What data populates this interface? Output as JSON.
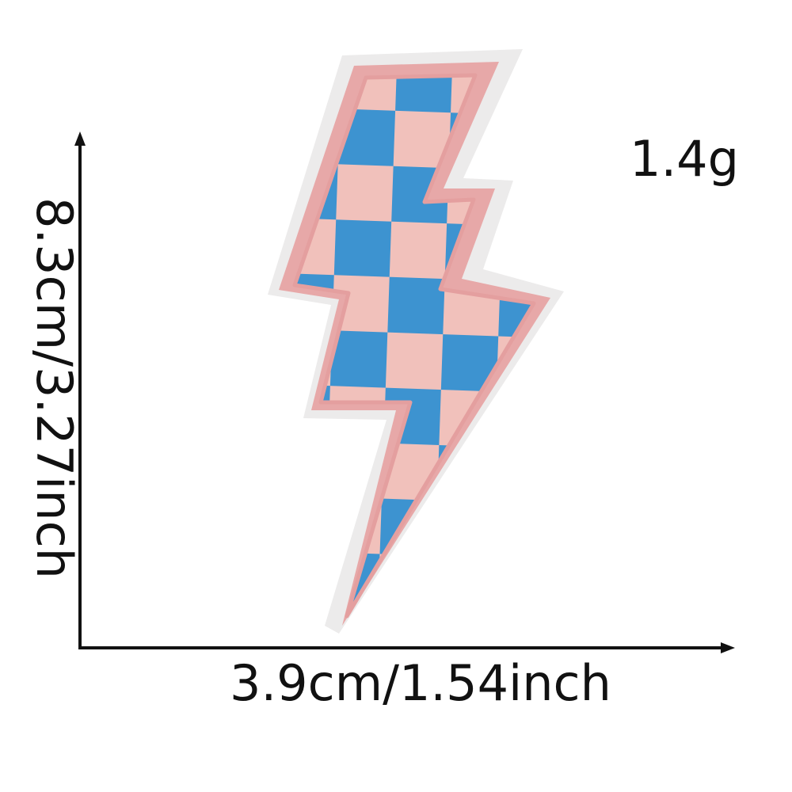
{
  "product": {
    "weight": "1.4g",
    "width": "3.9cm/1.54inch",
    "height": "8.3cm/3.27inch"
  },
  "patch": {
    "name": "lightning-bolt-patch",
    "colors": {
      "backing": "#ecebeb",
      "border": "#e7a8a8",
      "checker_pink": "#f1c1bb",
      "checker_blue": "#3d93d0"
    }
  },
  "colors": {
    "text": "#111111",
    "axis": "#111111",
    "background": "#ffffff"
  }
}
